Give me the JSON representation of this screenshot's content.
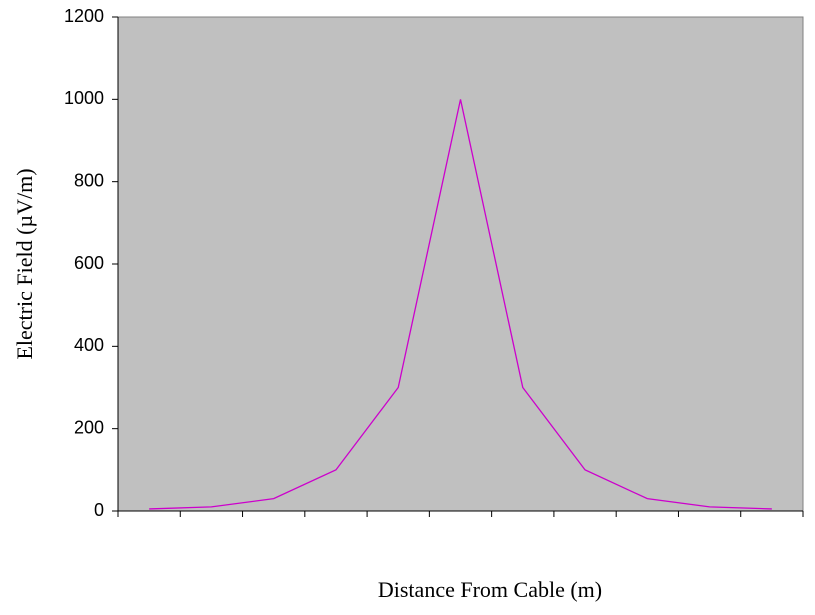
{
  "chart_data": {
    "type": "line",
    "xlabel": "Distance From Cable (m)",
    "ylabel": "Electric Field (µV/m)",
    "categories": [
      null,
      null,
      null,
      null,
      null,
      null,
      null,
      null,
      null,
      null,
      null
    ],
    "values": [
      5,
      10,
      30,
      100,
      300,
      1000,
      300,
      100,
      30,
      10,
      5
    ],
    "color": "#cc00cc",
    "ylim": [
      0,
      1200
    ],
    "yticks": [
      0,
      200,
      400,
      600,
      800,
      1000,
      1200
    ],
    "plot_background": "#c0c0c0"
  }
}
